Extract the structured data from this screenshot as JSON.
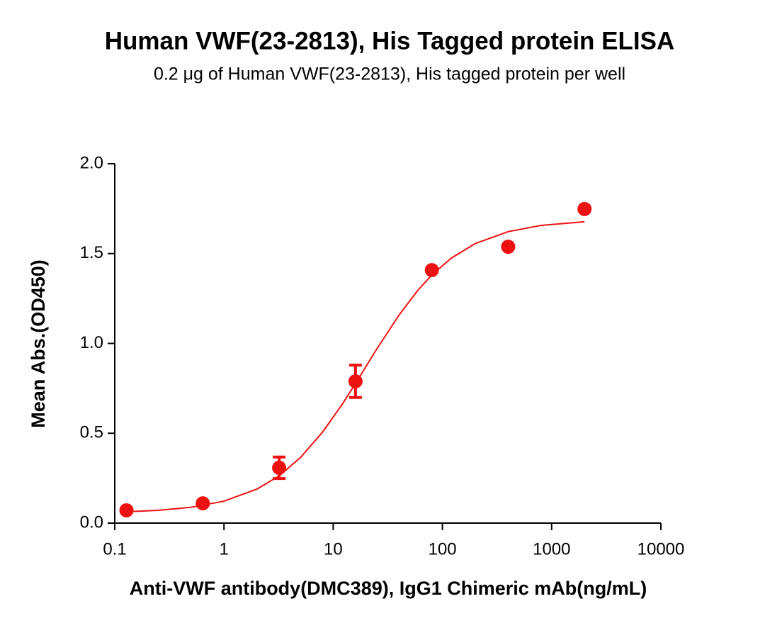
{
  "chart_data": {
    "type": "scatter",
    "title": "Human VWF(23-2813), His Tagged protein ELISA",
    "subtitle": "0.2 μg of Human VWF(23-2813), His tagged protein per well",
    "x_label": "Anti-VWF antibody(DMC389), IgG1 Chimeric mAb(ng/mL)",
    "y_label": "Mean Abs.(OD450)",
    "xscale": "log",
    "xlim": [
      0.1,
      10000
    ],
    "xticks": [
      0.1,
      1,
      10,
      100,
      1000,
      10000
    ],
    "ylim": [
      0,
      2
    ],
    "yticks": [
      {
        "value": 0,
        "label": "0.0"
      },
      0.5,
      {
        "value": 1,
        "label": "1.0"
      },
      1.5,
      {
        "value": 2,
        "label": "2.0"
      }
    ],
    "points": {
      "color": "#ee1111",
      "x": [
        0.128,
        0.64,
        3.2,
        16,
        80,
        400,
        2000
      ],
      "y": [
        0.071,
        0.11,
        0.308,
        0.789,
        1.408,
        1.538,
        1.748
      ],
      "errors": [
        null,
        null,
        0.06,
        0.09,
        null,
        null,
        null
      ]
    },
    "curve": {
      "color": "#ee1111",
      "x": [
        0.128,
        0.25,
        0.5,
        1,
        2,
        3.2,
        5,
        8,
        12,
        16,
        25,
        40,
        60,
        80,
        120,
        200,
        400,
        800,
        2000
      ],
      "y": [
        0.063,
        0.071,
        0.088,
        0.122,
        0.189,
        0.263,
        0.364,
        0.507,
        0.658,
        0.777,
        0.968,
        1.157,
        1.298,
        1.381,
        1.474,
        1.556,
        1.622,
        1.657,
        1.677
      ]
    }
  }
}
